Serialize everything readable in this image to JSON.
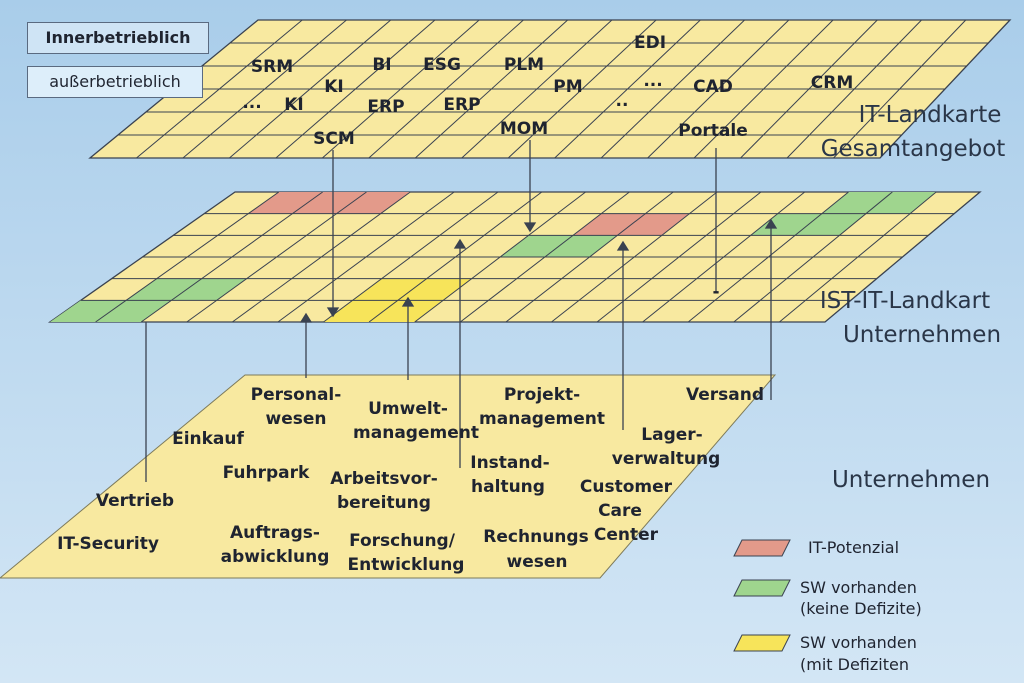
{
  "top_boxes": {
    "inner": "Innerbetrieblich",
    "outer": "außerbetrieblich"
  },
  "layers": {
    "top": {
      "line1": "IT-Landkarte",
      "line2": "Gesamtangebot"
    },
    "middle": {
      "line1": "IST-IT-Landkart",
      "line2": "Unternehmen"
    },
    "bottom": {
      "line1": "Unternehmen"
    }
  },
  "top_items": {
    "edi": "EDI",
    "srm": "SRM",
    "bi": "BI",
    "esg": "ESG",
    "plm": "PLM",
    "ki1": "KI",
    "pm": "PM",
    "dots1": "...",
    "cad": "CAD",
    "crm": "CRM",
    "dots2": "...",
    "ki2": "KI",
    "erp1": "ERP",
    "erp2": "ERP",
    "dots3": "..",
    "mom": "MOM",
    "scm": "SCM",
    "portale": "Portale"
  },
  "middle_marks": {
    "dash": "-"
  },
  "departments": {
    "personal_1": "Personal-",
    "personal_2": "wesen",
    "umwelt_1": "Umwelt-",
    "umwelt_2": "management",
    "projekt_1": "Projekt-",
    "projekt_2": "management",
    "versand": "Versand",
    "einkauf": "Einkauf",
    "lager_1": "Lager-",
    "lager_2": "verwaltung",
    "fuhrpark": "Fuhrpark",
    "instand_1": "Instand-",
    "instand_2": "haltung",
    "arbeit_1": "Arbeitsvor-",
    "arbeit_2": "bereitung",
    "vertrieb": "Vertrieb",
    "customer_1": "Customer",
    "customer_2": "Care",
    "customer_3": "Center",
    "itsec": "IT-Security",
    "auftrag_1": "Auftrags-",
    "auftrag_2": "abwicklung",
    "forschung_1": "Forschung/",
    "forschung_2": "Entwicklung",
    "rechnung_1": "Rechnungs",
    "rechnung_2": "wesen"
  },
  "legend": {
    "potential": "IT-Potenzial",
    "green_1": "SW vorhanden",
    "green_2": "(keine Defizite)",
    "yellow_1": "SW vorhanden",
    "yellow_2": "(mit Defiziten"
  },
  "colors": {
    "plane": "#f8e9a0",
    "grid": "#3a4250",
    "red": "#e39a8a",
    "green": "#9fd58e",
    "yellow": "#f7e45a",
    "background": "#bcd9f0"
  }
}
